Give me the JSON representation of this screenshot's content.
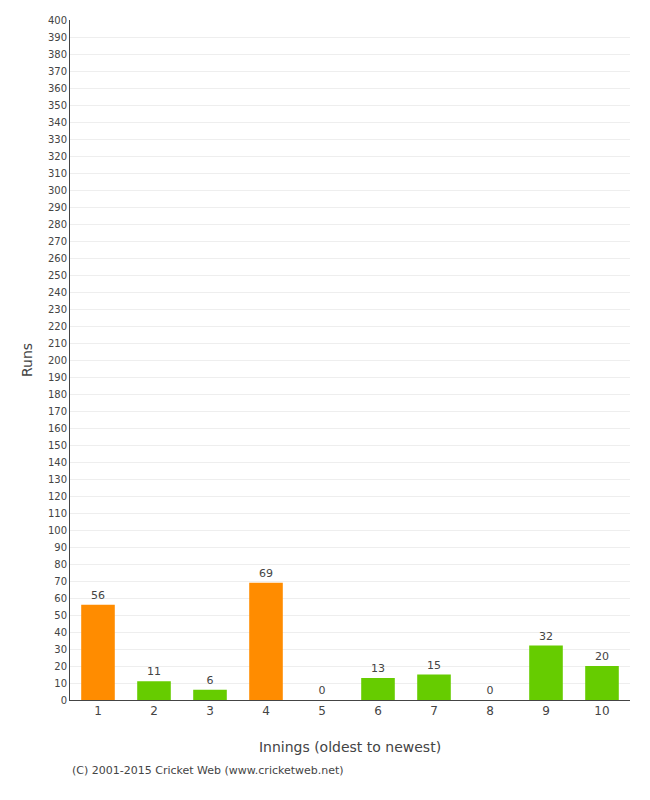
{
  "chart_data": {
    "type": "bar",
    "categories": [
      "1",
      "2",
      "3",
      "4",
      "5",
      "6",
      "7",
      "8",
      "9",
      "10"
    ],
    "values": [
      56,
      11,
      6,
      69,
      0,
      13,
      15,
      0,
      32,
      20
    ],
    "colors": [
      "#ff8c00",
      "#66cc00",
      "#66cc00",
      "#ff8c00",
      "#66cc00",
      "#66cc00",
      "#66cc00",
      "#66cc00",
      "#66cc00",
      "#66cc00"
    ],
    "xlabel": "Innings (oldest to newest)",
    "ylabel": "Runs",
    "ylim": [
      0,
      400
    ],
    "yticks": [
      0,
      10,
      20,
      30,
      40,
      50,
      60,
      70,
      80,
      90,
      100,
      110,
      120,
      130,
      140,
      150,
      160,
      170,
      180,
      190,
      200,
      210,
      220,
      230,
      240,
      250,
      260,
      270,
      280,
      290,
      300,
      310,
      320,
      330,
      340,
      350,
      360,
      370,
      380,
      390,
      400
    ],
    "grid": true,
    "data_labels": true,
    "annotations": [
      "(C) 2001-2015 Cricket Web (www.cricketweb.net)"
    ]
  }
}
